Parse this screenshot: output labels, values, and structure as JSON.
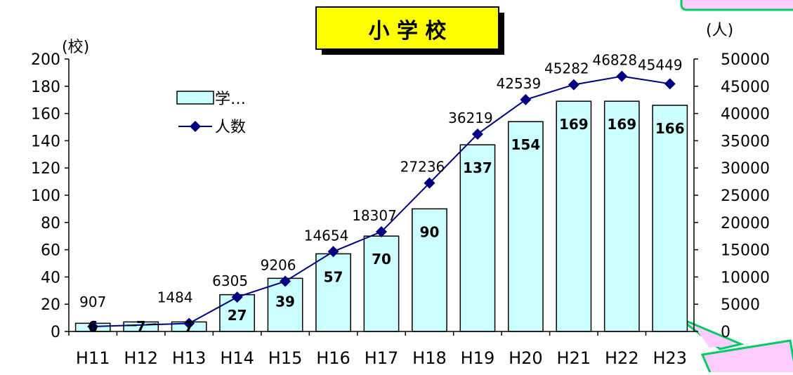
{
  "chart_data": {
    "type": "bar",
    "title": "小 学 校",
    "left_axis_unit": "(校)",
    "right_axis_unit": "(人)",
    "categories": [
      "H11",
      "H12",
      "H13",
      "H14",
      "H15",
      "H16",
      "H17",
      "H18",
      "H19",
      "H20",
      "H21",
      "H22",
      "H23"
    ],
    "series": [
      {
        "name": "学…",
        "kind": "bar",
        "axis": "left",
        "values": [
          6,
          7,
          7,
          27,
          39,
          57,
          70,
          90,
          137,
          154,
          169,
          169,
          166
        ]
      },
      {
        "name": "人数",
        "kind": "line",
        "axis": "right",
        "values": [
          907,
          null,
          1484,
          6305,
          9206,
          14654,
          18307,
          27236,
          36219,
          42539,
          45282,
          46828,
          45449
        ]
      }
    ],
    "bar_labels": [
      "6",
      "7",
      "7",
      "27",
      "39",
      "57",
      "70",
      "90",
      "137",
      "154",
      "169",
      "169",
      "166"
    ],
    "line_labels": [
      "907",
      "",
      "1484",
      "6305",
      "9206",
      "14654",
      "18307",
      "27236",
      "36219",
      "42539",
      "45282",
      "46828",
      "45449"
    ],
    "left_axis": {
      "ylim": [
        0,
        200
      ],
      "ticks": [
        "0",
        "20",
        "40",
        "60",
        "80",
        "100",
        "120",
        "140",
        "160",
        "180",
        "200"
      ]
    },
    "right_axis": {
      "ylim": [
        0,
        50000
      ],
      "ticks": [
        "0",
        "5000",
        "10000",
        "15000",
        "20000",
        "25000",
        "30000",
        "35000",
        "40000",
        "45000",
        "50000"
      ]
    },
    "legend_position": "top-left",
    "grid": false,
    "colors": {
      "bar_fill": "#ccffff",
      "line": "#000080",
      "title_bg": "#ffff00",
      "callout_fill": "#ffccff",
      "callout_stroke": "#00cc66"
    }
  }
}
